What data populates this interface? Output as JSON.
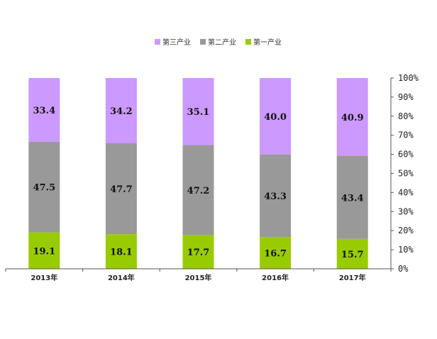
{
  "chart_data": {
    "type": "bar",
    "stacked": true,
    "percent_stacked": true,
    "categories": [
      "2013年",
      "2014年",
      "2015年",
      "2016年",
      "2017年"
    ],
    "series": [
      {
        "name": "第一产业",
        "values": [
          19.1,
          18.1,
          17.7,
          16.7,
          15.7
        ],
        "color": "#99cc00"
      },
      {
        "name": "第二产业",
        "values": [
          47.5,
          47.7,
          47.2,
          43.3,
          43.4
        ],
        "color": "#999999"
      },
      {
        "name": "第三产业",
        "values": [
          33.4,
          34.2,
          35.1,
          40.0,
          40.9
        ],
        "color": "#cc99ff"
      }
    ],
    "legend_order": [
      "第三产业",
      "第二产业",
      "第一产业"
    ],
    "legend_position": "top-center",
    "y_axis_side": "right",
    "y_ticks": [
      "0%",
      "10%",
      "20%",
      "30%",
      "40%",
      "50%",
      "60%",
      "70%",
      "80%",
      "90%",
      "100%"
    ],
    "ylim": [
      0,
      100
    ],
    "grid": false,
    "title": "",
    "xlabel": "",
    "ylabel": ""
  }
}
